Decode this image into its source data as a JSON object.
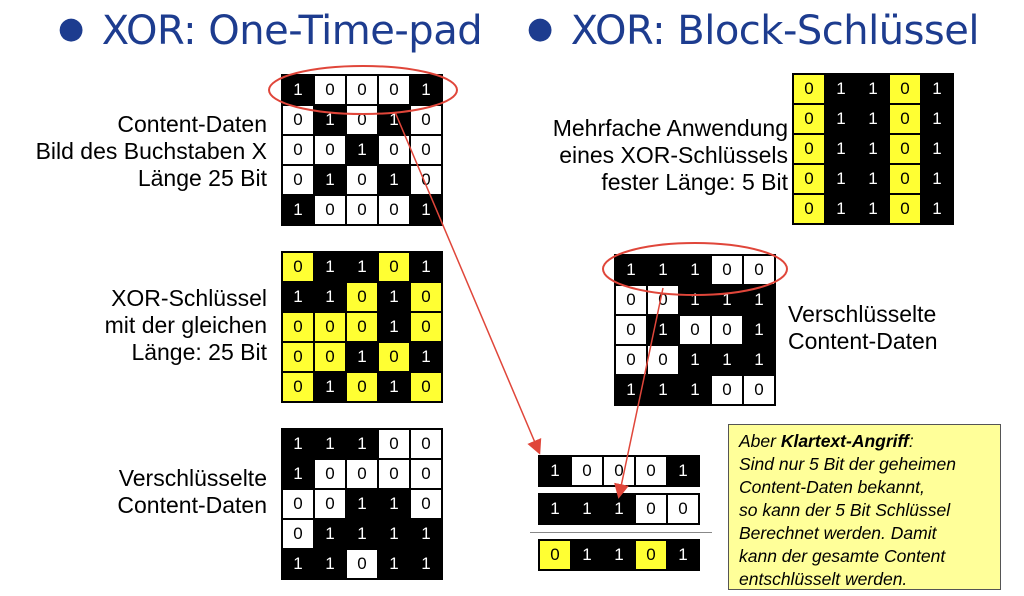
{
  "colors": {
    "title": "#1d3c8f",
    "one": "#000000",
    "zero": "#ffffff",
    "key_zero": "#ffff33",
    "highlight": "#e0463a",
    "note_bg": "#ffff99"
  },
  "left": {
    "title": "XOR: One-Time-pad",
    "content_labels": [
      "Content-Daten",
      "Bild des Buchstaben X",
      "Länge 25 Bit"
    ],
    "key_labels": [
      "XOR-Schlüssel",
      "mit der gleichen",
      "Länge: 25 Bit"
    ],
    "encrypted_labels": [
      "Verschlüsselte",
      "Content-Daten"
    ],
    "content_grid": [
      [
        1,
        0,
        0,
        0,
        1
      ],
      [
        0,
        1,
        0,
        1,
        0
      ],
      [
        0,
        0,
        1,
        0,
        0
      ],
      [
        0,
        1,
        0,
        1,
        0
      ],
      [
        1,
        0,
        0,
        0,
        1
      ]
    ],
    "key_grid": [
      [
        0,
        1,
        1,
        0,
        1
      ],
      [
        1,
        1,
        0,
        1,
        0
      ],
      [
        0,
        0,
        0,
        1,
        0
      ],
      [
        0,
        0,
        1,
        0,
        1
      ],
      [
        0,
        1,
        0,
        1,
        0
      ]
    ],
    "encrypted_grid": [
      [
        1,
        1,
        1,
        0,
        0
      ],
      [
        1,
        0,
        0,
        0,
        0
      ],
      [
        0,
        0,
        1,
        1,
        0
      ],
      [
        0,
        1,
        1,
        1,
        1
      ],
      [
        1,
        1,
        0,
        1,
        1
      ]
    ]
  },
  "right": {
    "title": "XOR: Block-Schlüssel",
    "key_labels": [
      "Mehrfache Anwendung",
      "eines XOR-Schlüssels",
      "fester Länge: 5 Bit"
    ],
    "encrypted_labels": [
      "Verschlüsselte",
      "Content-Daten"
    ],
    "key_grid": [
      [
        0,
        1,
        1,
        0,
        1
      ],
      [
        0,
        1,
        1,
        0,
        1
      ],
      [
        0,
        1,
        1,
        0,
        1
      ],
      [
        0,
        1,
        1,
        0,
        1
      ],
      [
        0,
        1,
        1,
        0,
        1
      ]
    ],
    "encrypted_grid": [
      [
        1,
        1,
        1,
        0,
        0
      ],
      [
        0,
        0,
        1,
        1,
        1
      ],
      [
        0,
        1,
        0,
        0,
        1
      ],
      [
        0,
        0,
        1,
        1,
        1
      ],
      [
        1,
        1,
        1,
        0,
        0
      ]
    ],
    "attack_rows": {
      "plain": [
        1,
        0,
        0,
        0,
        1
      ],
      "cipher": [
        1,
        1,
        1,
        0,
        0
      ],
      "key": [
        0,
        1,
        1,
        0,
        1
      ]
    }
  },
  "note": {
    "prefix": "Aber ",
    "bold": "Klartext-Angriff",
    "suffix": ":",
    "lines": [
      "Sind nur 5 Bit der geheimen",
      "Content-Daten bekannt,",
      "so kann der 5 Bit Schlüssel",
      "Berechnet werden. Damit",
      "kann der gesamte Content",
      "entschlüsselt werden."
    ]
  }
}
